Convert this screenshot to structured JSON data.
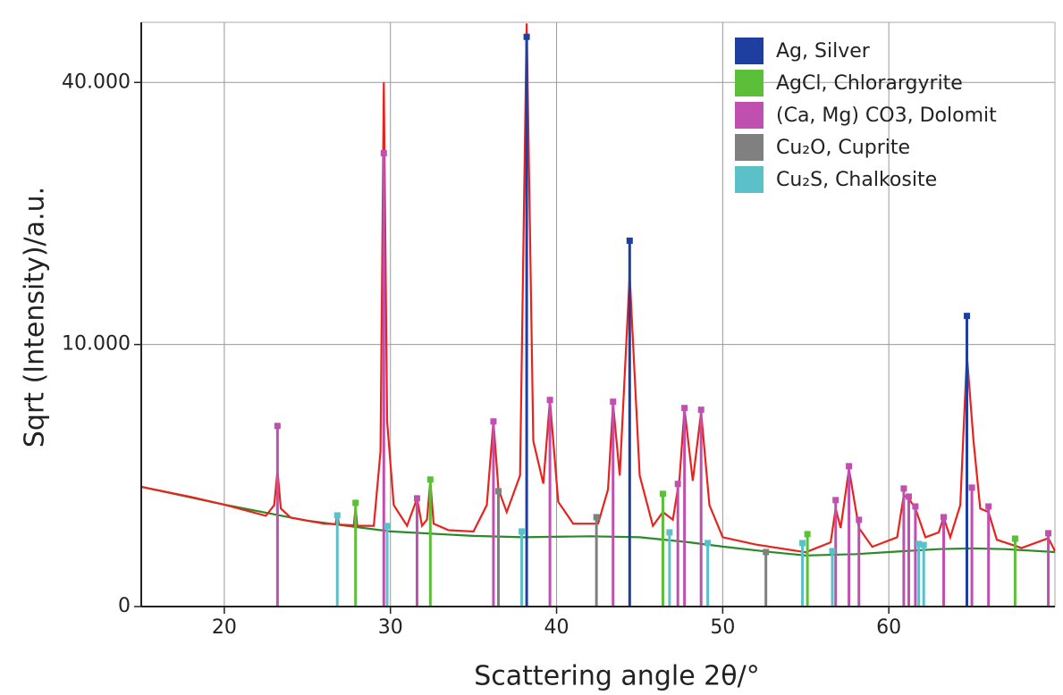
{
  "chart_data": {
    "type": "line",
    "x_label": "Scattering angle 2θ/°",
    "y_label": "Sqrt (Intensity)/a.u.",
    "xlim": [
      15,
      70
    ],
    "ylim": [
      0,
      49700
    ],
    "yscale": "sqrt",
    "xticks": [
      20,
      30,
      40,
      50,
      60
    ],
    "yticks": [
      0,
      {
        "value": 10000,
        "label": "10.000"
      },
      {
        "value": 40000,
        "label": "40.000"
      }
    ],
    "grid": true,
    "legend": "upper right",
    "curves": [
      {
        "color": "#e8231e",
        "x": [
          15,
          18,
          20,
          22.5,
          23.0,
          23.2,
          23.4,
          24,
          26,
          26.7,
          26.8,
          26.9,
          27.8,
          27.9,
          28.0,
          29,
          29.4,
          29.6,
          29.8,
          30.2,
          31,
          31.6,
          31.9,
          32.2,
          32.4,
          32.6,
          33.5,
          35,
          35.8,
          36.2,
          36.5,
          37,
          37.8,
          38.2,
          38.6,
          39.2,
          39.6,
          40.1,
          41,
          42.5,
          43.1,
          43.4,
          43.8,
          44.4,
          45,
          45.8,
          46.4,
          47,
          47.4,
          47.7,
          48.2,
          48.7,
          49.2,
          50,
          52,
          55,
          56.5,
          56.8,
          57.1,
          57.6,
          58.2,
          59,
          60.5,
          60.9,
          61.2,
          61.6,
          62.2,
          63,
          63.3,
          63.7,
          64.3,
          64.7,
          65.1,
          65.5,
          66,
          66.5,
          68,
          69.6,
          70
        ],
        "values": [
          2090,
          1750,
          1513,
          1200,
          1500,
          2700,
          1400,
          1150,
          1000,
          990,
          1250,
          980,
          960,
          1450,
          950,
          950,
          3500,
          40000,
          5000,
          1500,
          950,
          1700,
          950,
          1100,
          2300,
          1000,
          850,
          820,
          1500,
          5000,
          2000,
          1300,
          2500,
          49500,
          4000,
          2200,
          6200,
          1600,
          1000,
          1000,
          2000,
          6000,
          2500,
          16000,
          2500,
          950,
          1300,
          1100,
          2400,
          5700,
          2300,
          5500,
          1500,
          700,
          560,
          430,
          600,
          1400,
          900,
          2750,
          900,
          520,
          700,
          1800,
          1700,
          1400,
          700,
          800,
          1150,
          700,
          1500,
          9200,
          4000,
          1400,
          1300,
          650,
          500,
          680,
          450
        ]
      },
      {
        "color": "#2a8a2a",
        "x": [
          15,
          20,
          25,
          30,
          35,
          38,
          42,
          45,
          48,
          50,
          53,
          55,
          58,
          60,
          63,
          65,
          67,
          70
        ],
        "values": [
          2090,
          1513,
          1073,
          822,
          727,
          700,
          720,
          700,
          600,
          523,
          430,
          380,
          400,
          433,
          480,
          492,
          480,
          433
        ]
      }
    ],
    "series": [
      {
        "name": "Ag, Silver",
        "color": "#1f3fa0",
        "x": [
          38.2,
          44.4,
          64.7
        ],
        "values": [
          47260,
          19490,
          12300
        ]
      },
      {
        "name": "AgCl, Chlorargyrite",
        "color": "#5cbf3a",
        "x": [
          27.9,
          32.4,
          46.4,
          55.1,
          67.6
        ],
        "values": [
          1567,
          2350,
          1850,
          764,
          672
        ]
      },
      {
        "name": "(Ca, Mg) CO3, Dolomit",
        "color": "#c050b0",
        "x": [
          23.2,
          29.6,
          31.6,
          36.2,
          39.6,
          43.4,
          47.3,
          47.7,
          48.7,
          56.8,
          57.6,
          58.2,
          60.9,
          61.2,
          61.6,
          63.3,
          65.0,
          66.0,
          69.6
        ],
        "values": [
          4750,
          29940,
          1705,
          4990,
          6215,
          6110,
          2190,
          5740,
          5640,
          1650,
          2870,
          1096,
          2030,
          1760,
          1460,
          1164,
          2060,
          1460,
          783
        ]
      },
      {
        "name": "Cu₂O, Cuprite",
        "color": "#808080",
        "x": [
          36.5,
          42.4,
          52.6
        ],
        "values": [
          1938,
          1164,
          433
        ]
      },
      {
        "name": "Cu₂S, Chalkosite",
        "color": "#5bc0c8",
        "x": [
          26.8,
          29.8,
          37.9,
          46.8,
          49.1,
          54.8,
          56.6,
          61.8,
          62.1
        ],
        "values": [
          1211,
          944,
          822,
          802,
          587,
          587,
          448,
          571,
          552
        ]
      }
    ]
  }
}
